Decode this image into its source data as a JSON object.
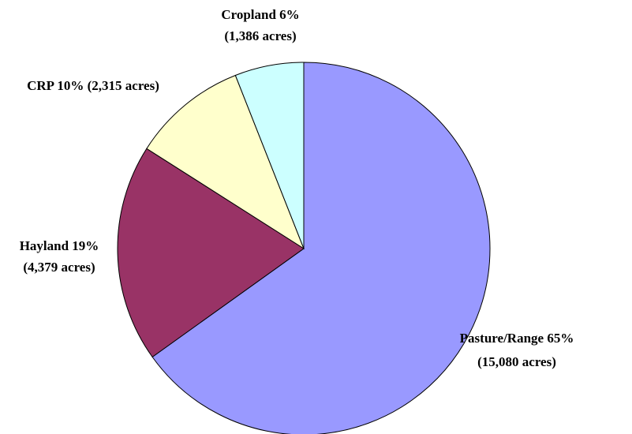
{
  "chart_data": {
    "type": "pie",
    "categories": [
      "Pasture/Range 65%",
      "Hayland 19%",
      "CRP 10%",
      "Cropland 6%"
    ],
    "values": [
      15080,
      4379,
      2315,
      1386
    ],
    "value_labels": [
      "(15,080 acres)",
      "(4,379 acres)",
      "(2,315 acres)",
      "(1,386 acres)"
    ],
    "colors": [
      "#9999ff",
      "#993366",
      "#ffffcc",
      "#ccffff"
    ]
  }
}
